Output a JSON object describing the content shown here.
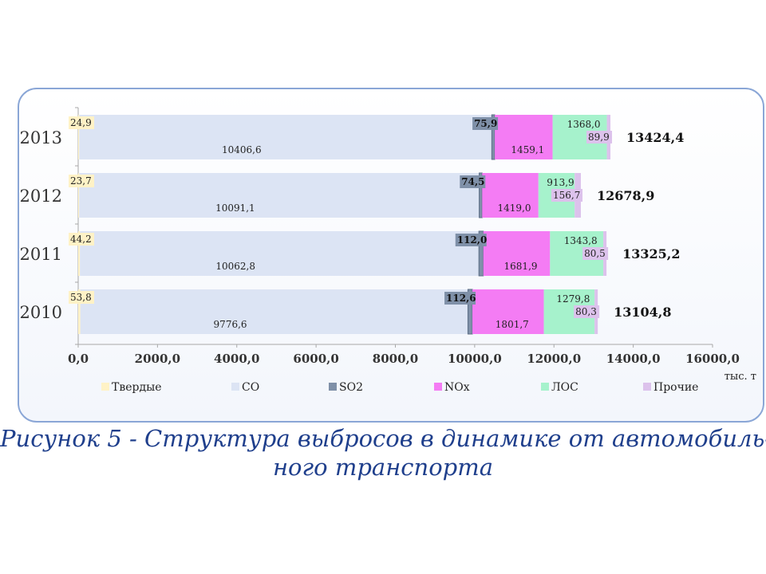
{
  "chart_data": {
    "type": "bar",
    "orientation": "horizontal",
    "stacked": true,
    "categories": [
      "2010",
      "2011",
      "2012",
      "2013"
    ],
    "series": [
      {
        "name": "Твердые",
        "color": "#fff2c6",
        "values": [
          53.8,
          44.2,
          23.7,
          24.9
        ],
        "labels": [
          "53,8",
          "44,2",
          "23,7",
          "24,9"
        ]
      },
      {
        "name": "CO",
        "color": "#dce4f4",
        "values": [
          9776.6,
          10062.8,
          10091.1,
          10406.6
        ],
        "labels": [
          "9776,6",
          "10062,8",
          "10091,1",
          "10406,6"
        ]
      },
      {
        "name": "SO2",
        "color": "#7f90a8",
        "values": [
          112.6,
          112.0,
          74.5,
          75.9
        ],
        "labels": [
          "112,6",
          "112,0",
          "74,5",
          "75,9"
        ]
      },
      {
        "name": "NOx",
        "color": "#f47cf4",
        "values": [
          1801.7,
          1681.9,
          1419.0,
          1459.1
        ],
        "labels": [
          "1801,7",
          "1681,9",
          "1419,0",
          "1459,1"
        ]
      },
      {
        "name": "ЛОС",
        "color": "#a6f2cc",
        "values": [
          1279.8,
          1343.8,
          913.9,
          1368.0
        ],
        "labels": [
          "1279,8",
          "1343,8",
          "913,9",
          "1368,0"
        ]
      },
      {
        "name": "Прочие",
        "color": "#dcc2ec",
        "values": [
          80.3,
          80.5,
          156.7,
          89.9
        ],
        "labels": [
          "80,3",
          "80,5",
          "156,7",
          "89,9"
        ]
      }
    ],
    "totals": [
      "13104,8",
      "13325,2",
      "12678,9",
      "13424,4"
    ],
    "xlim": [
      0,
      16000
    ],
    "xticks": [
      "0,0",
      "2000,0",
      "4000,0",
      "6000,0",
      "8000,0",
      "10000,0",
      "12000,0",
      "14000,0",
      "16000,0"
    ],
    "xunit": "тыс. т",
    "legend_position": "bottom",
    "grid": false
  },
  "caption": {
    "line1": "Рисунок 5 - Структура выбросов в динамике от автомобиль-",
    "line2": "ного транспорта"
  }
}
